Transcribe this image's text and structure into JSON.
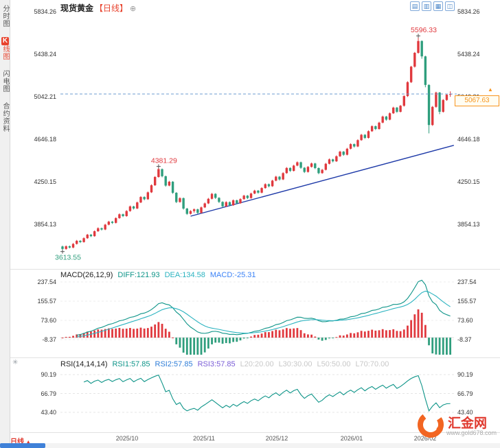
{
  "sidebar": {
    "tabs": [
      {
        "label": "分时图"
      },
      {
        "badge": "K",
        "rest": "线图"
      },
      {
        "label": "闪电图"
      },
      {
        "label": "合约资料"
      }
    ]
  },
  "title": {
    "symbol": "现货黄金",
    "period": "【日线】",
    "plus": "⊕"
  },
  "toolbar": {
    "icons": [
      "▤",
      "▥",
      "▦",
      "◫"
    ]
  },
  "indicators": {
    "macd": {
      "name": "MACD(26,12,9)",
      "diff": "DIFF:121.93",
      "dea": "DEA:134.58",
      "macd": "MACD:-25.31",
      "axis": [
        "237.54",
        "155.57",
        "73.60",
        "-8.37"
      ]
    },
    "rsi": {
      "name": "RSI(14,14,14)",
      "rsi1": "RSI1:57.85",
      "rsi2": "RSI2:57.85",
      "rsi3": "RSI3:57.85",
      "levels": [
        "L20:20.00",
        "L30:30.00",
        "L50:50.00",
        "L70:70.00"
      ],
      "axis": [
        "90.19",
        "66.79",
        "43.40"
      ]
    }
  },
  "footer": {
    "period": "日线",
    "arrow": "▲"
  },
  "logo": {
    "name": "汇金网",
    "url": "www.gold678.com"
  },
  "colors": {
    "up": "#e0393e",
    "down": "#2f9e7d",
    "diff": "#0d9488",
    "dea": "#2bb3c0",
    "macd_text": "#3b82f6",
    "rsi1": "#0d9488",
    "rsi2": "#2f7ed8",
    "rsi3": "#7a5cd6",
    "levels": "#c8c8c8",
    "trendline": "#1e3aa8",
    "price_line": "#6b9bd2",
    "tag": "#f7941d",
    "axis_text": "#333333"
  },
  "chart_data": {
    "type": "candlestick",
    "title": "现货黄金【日线】",
    "timeframe": "日线",
    "y_axis": [
      "5834.26",
      "5438.24",
      "5042.21",
      "4646.18",
      "4250.15",
      "3854.13"
    ],
    "x_axis": [
      "2025/10",
      "2025/11",
      "2025/12",
      "2026/01",
      "2026/02"
    ],
    "last_price": "5067.63",
    "annotations": [
      {
        "text": "5596.33",
        "index": 100,
        "price": 5596.33,
        "position": "above",
        "color_key": "up"
      },
      {
        "text": "4381.29",
        "index": 27,
        "price": 4381.29,
        "position": "above",
        "color_key": "up"
      },
      {
        "text": "3613.55",
        "index": 0,
        "price": 3613.55,
        "position": "below",
        "color_key": "down"
      }
    ],
    "trendline": {
      "from_index": 36,
      "from_price": 3930,
      "to_index": 110,
      "to_price": 4590
    },
    "candles": [
      [
        3648,
        3656,
        3613.55,
        3625
      ],
      [
        3625,
        3658,
        3618,
        3650
      ],
      [
        3650,
        3657,
        3630,
        3638
      ],
      [
        3638,
        3680,
        3632,
        3672
      ],
      [
        3672,
        3709,
        3666,
        3701
      ],
      [
        3701,
        3707,
        3680,
        3689
      ],
      [
        3689,
        3733,
        3684,
        3725
      ],
      [
        3725,
        3765,
        3719,
        3758
      ],
      [
        3758,
        3764,
        3736,
        3744
      ],
      [
        3744,
        3797,
        3739,
        3790
      ],
      [
        3790,
        3826,
        3784,
        3818
      ],
      [
        3818,
        3824,
        3797,
        3806
      ],
      [
        3806,
        3859,
        3800,
        3851
      ],
      [
        3851,
        3887,
        3845,
        3879
      ],
      [
        3879,
        3885,
        3858,
        3868
      ],
      [
        3868,
        3920,
        3862,
        3912
      ],
      [
        3912,
        3956,
        3906,
        3948
      ],
      [
        3948,
        3954,
        3922,
        3931
      ],
      [
        3931,
        3986,
        3925,
        3978
      ],
      [
        3978,
        4029,
        3972,
        4021
      ],
      [
        4021,
        4027,
        3992,
        4002
      ],
      [
        4002,
        4066,
        3996,
        4058
      ],
      [
        4058,
        4117,
        4052,
        4109
      ],
      [
        4109,
        4115,
        4078,
        4088
      ],
      [
        4088,
        4160,
        4082,
        4152
      ],
      [
        4152,
        4226,
        4146,
        4218
      ],
      [
        4218,
        4303,
        4212,
        4295
      ],
      [
        4295,
        4381.29,
        4289,
        4368
      ],
      [
        4368,
        4374,
        4292,
        4302
      ],
      [
        4302,
        4308,
        4205,
        4215
      ],
      [
        4215,
        4259,
        4209,
        4251
      ],
      [
        4251,
        4257,
        4138,
        4148
      ],
      [
        4148,
        4154,
        4052,
        4062
      ],
      [
        4062,
        4106,
        4056,
        4098
      ],
      [
        4098,
        4104,
        3991,
        4001
      ],
      [
        4001,
        4007,
        3942,
        3952
      ],
      [
        3952,
        3986,
        3946,
        3978
      ],
      [
        3978,
        4002,
        3962,
        3994
      ],
      [
        3994,
        4000,
        3951,
        3961
      ],
      [
        3961,
        4020,
        3955,
        4012
      ],
      [
        4012,
        4057,
        4006,
        4049
      ],
      [
        4049,
        4100,
        4043,
        4092
      ],
      [
        4092,
        4146,
        4086,
        4138
      ],
      [
        4138,
        4144,
        4091,
        4101
      ],
      [
        4101,
        4107,
        4053,
        4063
      ],
      [
        4063,
        4069,
        4012,
        4022
      ],
      [
        4022,
        4069,
        4016,
        4061
      ],
      [
        4061,
        4067,
        4022,
        4032
      ],
      [
        4032,
        4086,
        4026,
        4078
      ],
      [
        4078,
        4084,
        4041,
        4051
      ],
      [
        4051,
        4097,
        4045,
        4089
      ],
      [
        4089,
        4129,
        4083,
        4121
      ],
      [
        4121,
        4127,
        4089,
        4099
      ],
      [
        4099,
        4149,
        4093,
        4141
      ],
      [
        4141,
        4176,
        4135,
        4168
      ],
      [
        4168,
        4174,
        4139,
        4149
      ],
      [
        4149,
        4200,
        4143,
        4192
      ],
      [
        4192,
        4236,
        4186,
        4228
      ],
      [
        4228,
        4234,
        4199,
        4209
      ],
      [
        4209,
        4269,
        4203,
        4261
      ],
      [
        4261,
        4306,
        4255,
        4298
      ],
      [
        4298,
        4304,
        4262,
        4272
      ],
      [
        4272,
        4339,
        4266,
        4331
      ],
      [
        4331,
        4387,
        4325,
        4379
      ],
      [
        4379,
        4385,
        4342,
        4352
      ],
      [
        4352,
        4409,
        4346,
        4401
      ],
      [
        4401,
        4440,
        4395,
        4432
      ],
      [
        4432,
        4438,
        4371,
        4381
      ],
      [
        4381,
        4387,
        4332,
        4342
      ],
      [
        4342,
        4397,
        4336,
        4389
      ],
      [
        4389,
        4429,
        4383,
        4421
      ],
      [
        4421,
        4427,
        4368,
        4378
      ],
      [
        4378,
        4384,
        4321,
        4331
      ],
      [
        4331,
        4370,
        4325,
        4362
      ],
      [
        4362,
        4426,
        4356,
        4418
      ],
      [
        4418,
        4467,
        4412,
        4459
      ],
      [
        4459,
        4465,
        4431,
        4441
      ],
      [
        4441,
        4496,
        4435,
        4488
      ],
      [
        4488,
        4539,
        4482,
        4531
      ],
      [
        4531,
        4537,
        4492,
        4502
      ],
      [
        4502,
        4566,
        4496,
        4558
      ],
      [
        4558,
        4609,
        4552,
        4601
      ],
      [
        4601,
        4607,
        4569,
        4579
      ],
      [
        4579,
        4646,
        4573,
        4638
      ],
      [
        4638,
        4696,
        4632,
        4688
      ],
      [
        4688,
        4694,
        4649,
        4659
      ],
      [
        4659,
        4729,
        4653,
        4721
      ],
      [
        4721,
        4776,
        4715,
        4768
      ],
      [
        4768,
        4774,
        4732,
        4742
      ],
      [
        4742,
        4809,
        4736,
        4801
      ],
      [
        4801,
        4866,
        4795,
        4858
      ],
      [
        4858,
        4864,
        4819,
        4829
      ],
      [
        4829,
        4896,
        4823,
        4888
      ],
      [
        4888,
        4949,
        4882,
        4941
      ],
      [
        4941,
        4947,
        4892,
        4902
      ],
      [
        4902,
        4966,
        4896,
        4958
      ],
      [
        4958,
        5056,
        4950,
        5048
      ],
      [
        5048,
        5186,
        5040,
        5178
      ],
      [
        5178,
        5330,
        5170,
        5322
      ],
      [
        5322,
        5459,
        5314,
        5451
      ],
      [
        5451,
        5596.33,
        5443,
        5561
      ],
      [
        5561,
        5567,
        5396,
        5418
      ],
      [
        5418,
        5424,
        5130,
        5152
      ],
      [
        5152,
        5158,
        4701,
        4779
      ],
      [
        4779,
        4956,
        4771,
        4948
      ],
      [
        4948,
        5089,
        4940,
        5081
      ],
      [
        5081,
        5087,
        4880,
        4902
      ],
      [
        4902,
        5020,
        4894,
        5012
      ],
      [
        5012,
        5069,
        5004,
        5061
      ],
      [
        5061,
        5092,
        5041,
        5067.63
      ]
    ]
  }
}
